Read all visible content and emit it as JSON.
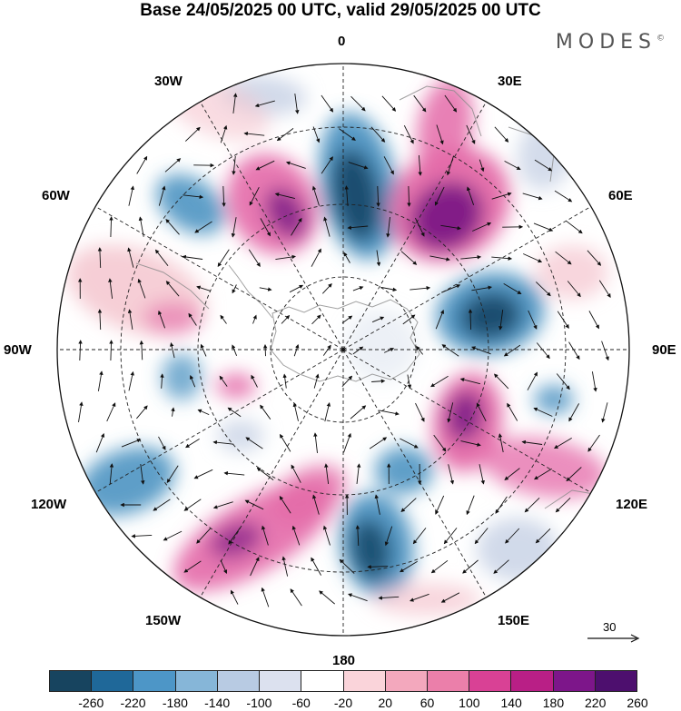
{
  "title": "Base 24/05/2025 00 UTC, valid 29/05/2025 00 UTC",
  "brand": "MODES",
  "brand_mark": "©",
  "map": {
    "projection": "polar stereographic, south pole",
    "longitude_labels": {
      "top": "0",
      "top_left": "30W",
      "top_right": "30E",
      "upper_left": "60W",
      "upper_right": "60E",
      "left": "90W",
      "right": "90E",
      "lower_left": "120W",
      "lower_right": "120E",
      "bottom_left": "150W",
      "bottom_right": "150E",
      "bottom": "180"
    },
    "vector_reference": "30",
    "fill_colors": {
      "strong_negative": "#174a6b",
      "negative": "#4e93c2",
      "weak_negative": "#c9d3e6",
      "weak_positive": "#f5c5cf",
      "positive": "#e46aa8",
      "strong_positive": "#7d1a86"
    }
  },
  "legend": {
    "colors": [
      "#17445f",
      "#1f6899",
      "#4d96c7",
      "#86b6d8",
      "#b8cbe3",
      "#dce1ef",
      "#ffffff",
      "#fad4da",
      "#f3a8bd",
      "#eb7faa",
      "#d94195",
      "#b91f86",
      "#7d168a",
      "#4d0f6e"
    ],
    "tick_labels": [
      "-260",
      "-220",
      "-180",
      "-140",
      "-100",
      "-60",
      "-20",
      "20",
      "60",
      "100",
      "140",
      "180",
      "220",
      "260"
    ]
  }
}
